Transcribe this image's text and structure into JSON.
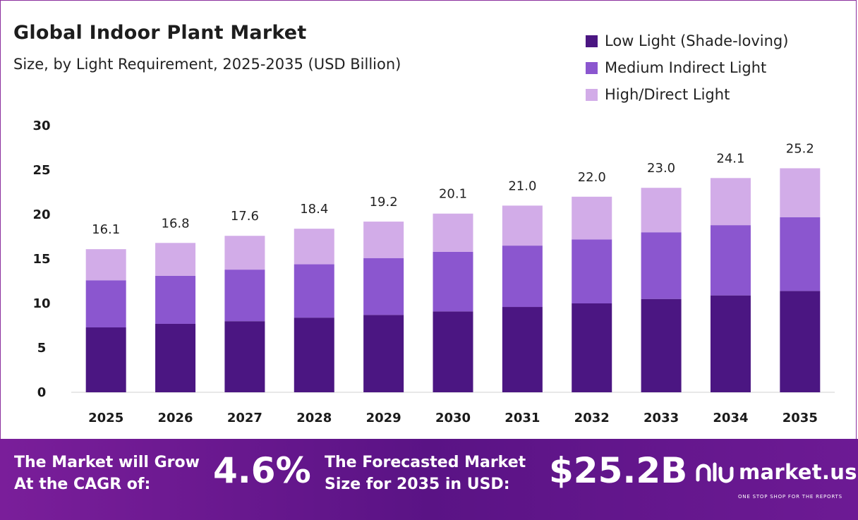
{
  "header": {
    "title": "Global Indoor Plant Market",
    "subtitle": "Size, by Light Requirement, 2025-2035 (USD Billion)"
  },
  "legend": [
    {
      "label": "Low Light (Shade-loving)",
      "color": "#4b1682"
    },
    {
      "label": "Medium Indirect Light",
      "color": "#8b56cf"
    },
    {
      "label": "High/Direct Light",
      "color": "#d2ace8"
    }
  ],
  "chart_data": {
    "type": "bar",
    "stacked": true,
    "categories": [
      "2025",
      "2026",
      "2027",
      "2028",
      "2029",
      "2030",
      "2031",
      "2032",
      "2033",
      "2034",
      "2035"
    ],
    "series": [
      {
        "name": "Low Light (Shade-loving)",
        "color": "#4b1682",
        "values": [
          7.3,
          7.7,
          8.0,
          8.4,
          8.7,
          9.1,
          9.6,
          10.0,
          10.5,
          10.9,
          11.4
        ]
      },
      {
        "name": "Medium Indirect Light",
        "color": "#8b56cf",
        "values": [
          5.3,
          5.4,
          5.8,
          6.0,
          6.4,
          6.7,
          6.9,
          7.2,
          7.5,
          7.9,
          8.3
        ]
      },
      {
        "name": "High/Direct Light",
        "color": "#d2ace8",
        "values": [
          3.5,
          3.7,
          3.8,
          4.0,
          4.1,
          4.3,
          4.5,
          4.8,
          5.0,
          5.3,
          5.5
        ]
      }
    ],
    "totals": [
      "16.1",
      "16.8",
      "17.6",
      "18.4",
      "19.2",
      "20.1",
      "21.0",
      "22.0",
      "23.0",
      "24.1",
      "25.2"
    ],
    "yticks": [
      "0",
      "5",
      "10",
      "15",
      "20",
      "25",
      "30"
    ],
    "ylim": [
      0,
      30
    ],
    "grid": false,
    "legend_position": "top-right"
  },
  "footer": {
    "cagr_label_line1": "The Market will Grow",
    "cagr_label_line2": "At the CAGR of:",
    "cagr_value": "4.6%",
    "forecast_label_line1": "The Forecasted Market",
    "forecast_label_line2": "Size for 2035 in USD:",
    "forecast_value": "$25.2B",
    "brand_name": "market.us",
    "brand_tagline": "ONE STOP SHOP FOR THE REPORTS"
  }
}
